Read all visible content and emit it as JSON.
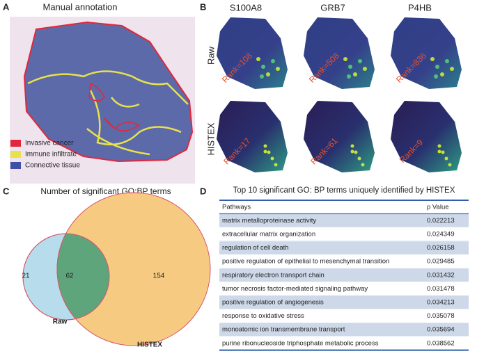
{
  "panel_a": {
    "label": "A",
    "title": "Manual annotation",
    "legend": [
      "Invasive cancer",
      "Immune infiltrate",
      "Connective tissue"
    ]
  },
  "panel_b": {
    "label": "B",
    "genes": [
      "S100A8",
      "GRB7",
      "P4HB"
    ],
    "rows": [
      {
        "name": "Raw",
        "ranks": [
          "Rank=108",
          "Rank=508",
          "Rank=836"
        ]
      },
      {
        "name": "HISTEX",
        "ranks": [
          "Rank=17",
          "Rank=61",
          "Rank=9"
        ]
      }
    ]
  },
  "panel_c": {
    "label": "C",
    "title": "Number of significant GO:BP terms",
    "sets": [
      "Raw",
      "HISTEX"
    ],
    "raw_only": 21,
    "shared": 62,
    "histex_only": 154
  },
  "panel_d": {
    "label": "D",
    "title": "Top 10 significant GO: BP terms uniquely identified by HISTEX",
    "header": [
      "Pathways",
      "p Value"
    ],
    "rows": [
      [
        "matrix metalloproteinase activity",
        "0.022213"
      ],
      [
        "extracellular matrix organization",
        "0.024349"
      ],
      [
        "regulation of cell death",
        "0.026158"
      ],
      [
        "positive regulation of epithelial to mesenchymal transition",
        "0.029485"
      ],
      [
        "respiratory electron transport chain",
        "0.031432"
      ],
      [
        "tumor necrosis factor-mediated signaling pathway",
        "0.031478"
      ],
      [
        "positive regulation of angiogenesis",
        "0.034213"
      ],
      [
        "response to oxidative stress",
        "0.035078"
      ],
      [
        "monoatomic ion transmembrane transport",
        "0.035694"
      ],
      [
        "purine ribonucleoside triphosphate metabolic process",
        "0.038562"
      ]
    ]
  }
}
